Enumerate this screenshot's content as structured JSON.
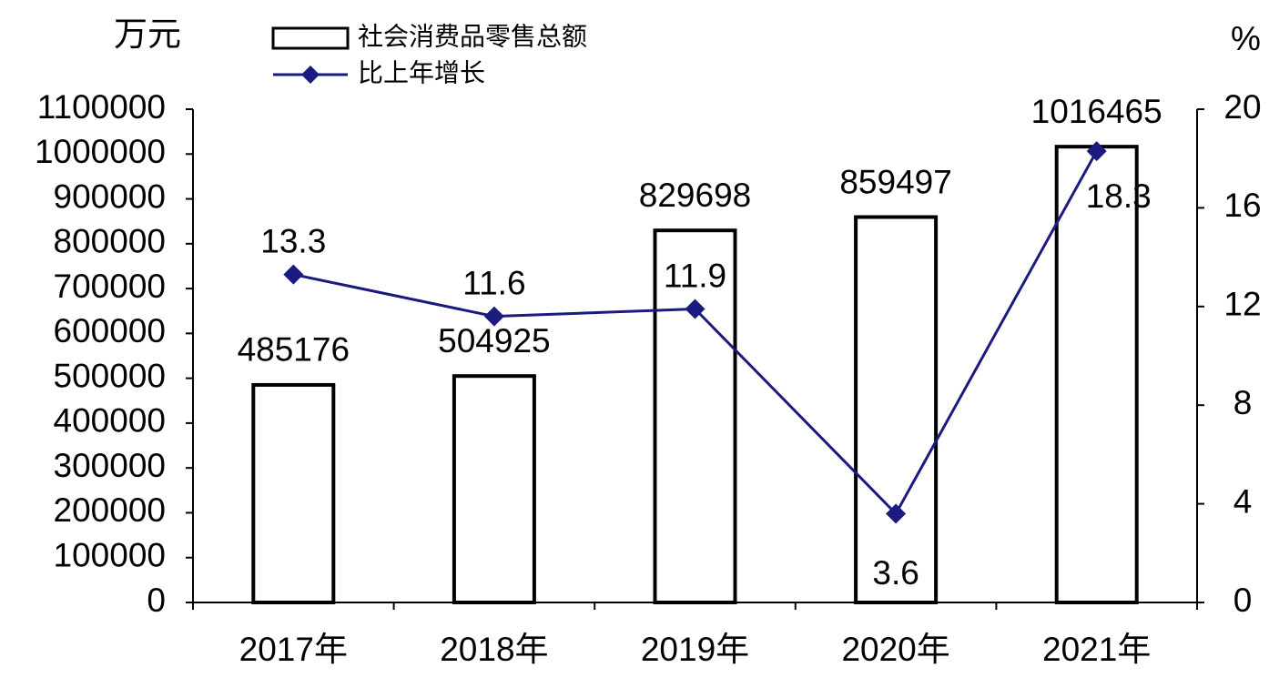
{
  "chart_data": {
    "type": "bar-line",
    "y_unit": "万元",
    "y2_unit": "%",
    "categories": [
      "2017年",
      "2018年",
      "2019年",
      "2020年",
      "2021年"
    ],
    "series": [
      {
        "name": "社会消费品零售总额",
        "type": "bar",
        "color": "#ffffff",
        "values": [
          485176,
          504925,
          829698,
          859497,
          1016465
        ]
      },
      {
        "name": "比上年增长",
        "type": "line",
        "color": "#1a1a80",
        "axis": "y2",
        "values": [
          13.3,
          11.6,
          11.9,
          3.6,
          18.3
        ]
      }
    ],
    "ylim": [
      0,
      1100000
    ],
    "yticks": [
      0,
      100000,
      200000,
      300000,
      400000,
      500000,
      600000,
      700000,
      800000,
      900000,
      1000000,
      1100000
    ],
    "y2lim": [
      0,
      20
    ],
    "y2ticks": [
      0,
      4,
      8,
      12,
      16,
      20
    ],
    "grid": false,
    "legend": "top"
  }
}
